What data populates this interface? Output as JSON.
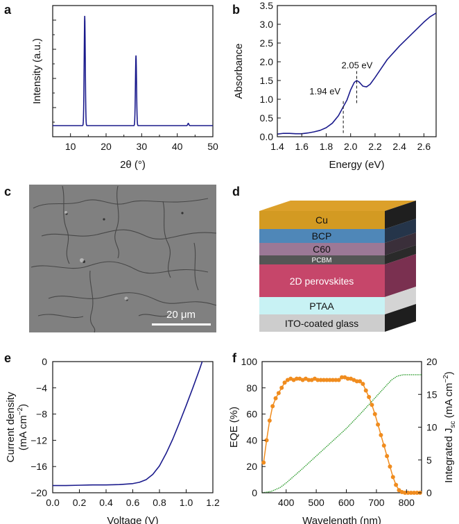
{
  "panels": {
    "a": "a",
    "b": "b",
    "c": "c",
    "d": "d",
    "e": "e",
    "f": "f"
  },
  "chart_data": [
    {
      "id": "a",
      "type": "line",
      "xlabel": "2θ (°)",
      "ylabel": "Intensity (a.u.)",
      "xlim": [
        5,
        50
      ],
      "xticks": [
        10,
        20,
        30,
        40,
        50
      ],
      "peaks": [
        {
          "x": 14.0,
          "height": 0.97
        },
        {
          "x": 28.4,
          "height": 0.62
        },
        {
          "x": 43.1,
          "height": 0.02
        }
      ],
      "baseline": 0.0,
      "color": "#1a1a8c"
    },
    {
      "id": "b",
      "type": "line",
      "xlabel": "Energy (eV)",
      "ylabel": "Absorbance",
      "xlim": [
        1.4,
        2.7
      ],
      "ylim": [
        0,
        3.5
      ],
      "xticks": [
        1.4,
        1.6,
        1.8,
        2.0,
        2.2,
        2.4,
        2.6
      ],
      "yticks": [
        0.0,
        0.5,
        1.0,
        1.5,
        2.0,
        2.5,
        3.0,
        3.5
      ],
      "x": [
        1.4,
        1.45,
        1.5,
        1.55,
        1.6,
        1.65,
        1.7,
        1.75,
        1.8,
        1.85,
        1.9,
        1.94,
        1.97,
        2.0,
        2.03,
        2.05,
        2.07,
        2.1,
        2.13,
        2.16,
        2.2,
        2.25,
        2.3,
        2.35,
        2.4,
        2.45,
        2.5,
        2.55,
        2.6,
        2.65,
        2.7
      ],
      "y": [
        0.07,
        0.09,
        0.09,
        0.08,
        0.08,
        0.1,
        0.13,
        0.17,
        0.24,
        0.36,
        0.56,
        0.8,
        0.98,
        1.25,
        1.45,
        1.5,
        1.46,
        1.35,
        1.33,
        1.4,
        1.58,
        1.82,
        2.06,
        2.24,
        2.42,
        2.58,
        2.74,
        2.9,
        3.06,
        3.2,
        3.3
      ],
      "annotations": [
        {
          "text": "1.94 eV",
          "x": 1.94
        },
        {
          "text": "2.05 eV",
          "x": 2.05
        }
      ],
      "color": "#1a1a8c"
    },
    {
      "id": "e",
      "type": "line",
      "xlabel": "Voltage (V)",
      "ylabel_line1": "Current density",
      "ylabel_line2": "(mA cm",
      "ylabel_sup": "−2",
      "ylabel_end": ")",
      "xlim": [
        0.0,
        1.2
      ],
      "ylim": [
        -20,
        0
      ],
      "xticks": [
        0.0,
        0.2,
        0.4,
        0.6,
        0.8,
        1.0,
        1.2
      ],
      "yticks": [
        0,
        -4,
        -8,
        -12,
        -16,
        -20
      ],
      "x": [
        0.0,
        0.1,
        0.2,
        0.3,
        0.4,
        0.5,
        0.6,
        0.65,
        0.7,
        0.75,
        0.8,
        0.85,
        0.9,
        0.95,
        1.0,
        1.05,
        1.1,
        1.12
      ],
      "y": [
        -18.9,
        -18.9,
        -18.85,
        -18.8,
        -18.8,
        -18.75,
        -18.6,
        -18.4,
        -18.0,
        -17.2,
        -15.9,
        -14.0,
        -11.8,
        -9.3,
        -6.7,
        -4.0,
        -1.2,
        0.0
      ],
      "color": "#1a1a8c"
    },
    {
      "id": "f",
      "type": "line",
      "xlabel": "Wavelength (nm)",
      "ylabel": "EQE (%)",
      "ylabel_right": "Integrated J",
      "ylabel_right_sub": "sc",
      "ylabel_right_end": " (mA cm",
      "ylabel_right_sup": "−2",
      "ylabel_right_close": ")",
      "xlim": [
        320,
        850
      ],
      "ylim": [
        0,
        100
      ],
      "ylim_right": [
        0,
        20
      ],
      "xticks": [
        400,
        500,
        600,
        700,
        800
      ],
      "yticks": [
        0,
        20,
        40,
        60,
        80,
        100
      ],
      "yticks_right": [
        0,
        5,
        10,
        15,
        20
      ],
      "series": [
        {
          "name": "EQE",
          "axis": "left",
          "color": "#f08c1e",
          "x": [
            325,
            335,
            345,
            355,
            365,
            375,
            385,
            395,
            405,
            415,
            425,
            435,
            445,
            455,
            465,
            475,
            485,
            495,
            505,
            515,
            525,
            535,
            545,
            555,
            565,
            575,
            585,
            595,
            605,
            615,
            625,
            635,
            645,
            655,
            665,
            675,
            685,
            695,
            705,
            715,
            725,
            735,
            745,
            755,
            765,
            775,
            785,
            795,
            805,
            815,
            825,
            835,
            845
          ],
          "y": [
            23,
            40,
            55,
            66,
            72,
            76,
            80,
            84,
            86,
            87,
            86,
            87,
            87,
            86,
            87,
            86,
            86,
            87,
            86,
            86,
            86,
            86,
            86,
            86,
            86,
            86,
            88,
            88,
            87,
            87,
            86,
            85,
            85,
            83,
            78,
            73,
            67,
            60,
            52,
            44,
            36,
            28,
            20,
            12,
            6,
            2,
            0.5,
            0,
            0,
            0,
            0,
            0,
            0
          ]
        },
        {
          "name": "Integrated Jsc",
          "axis": "right",
          "color": "#2a9a2a",
          "x": [
            320,
            350,
            380,
            400,
            450,
            500,
            550,
            600,
            650,
            700,
            730,
            750,
            770,
            790,
            800,
            850
          ],
          "y": [
            0,
            0.2,
            0.8,
            1.5,
            3.5,
            5.6,
            7.7,
            9.8,
            12.2,
            14.7,
            16.2,
            17.2,
            17.8,
            18.0,
            18.0,
            18.0
          ]
        }
      ]
    }
  ],
  "sem": {
    "scale_bar": "20 μm"
  },
  "device": {
    "layers": [
      "Cu",
      "BCP",
      "C60",
      "PCBM",
      "2D perovskites",
      "PTAA",
      "ITO-coated glass"
    ]
  }
}
